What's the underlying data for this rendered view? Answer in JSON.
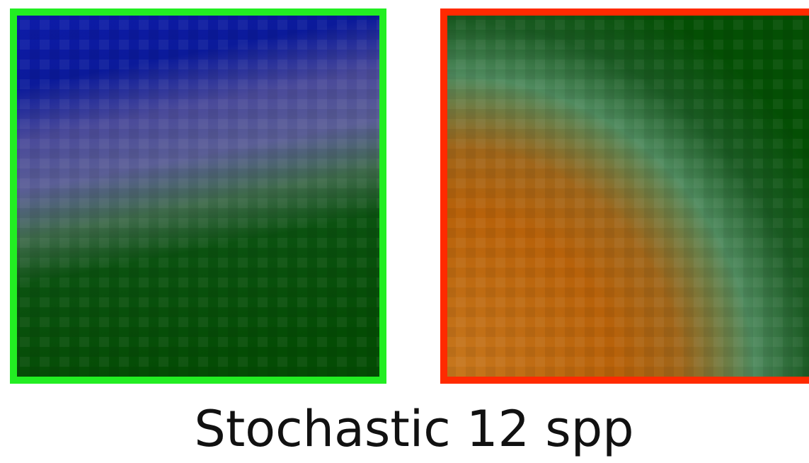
{
  "caption": "Stochastic 12 spp"
}
